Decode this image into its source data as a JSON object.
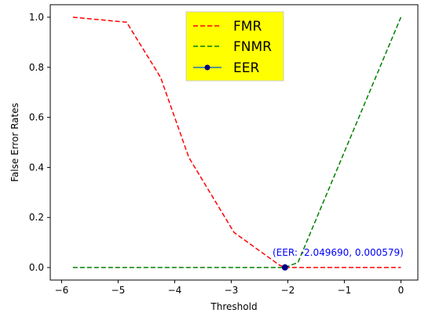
{
  "chart_data": {
    "type": "line",
    "xlabel": "Threshold",
    "ylabel": "False Error Rates",
    "xlim": [
      -6.2,
      0.3
    ],
    "ylim": [
      -0.05,
      1.05
    ],
    "x_ticks": [
      -6,
      -5,
      -4,
      -3,
      -2,
      -1,
      0
    ],
    "x_tick_labels": [
      "−6",
      "−5",
      "−4",
      "−3",
      "−2",
      "−1",
      "0"
    ],
    "y_ticks": [
      0.0,
      0.2,
      0.4,
      0.6,
      0.8,
      1.0
    ],
    "y_tick_labels": [
      "0.0",
      "0.2",
      "0.4",
      "0.6",
      "0.8",
      "1.0"
    ],
    "grid": false,
    "legend_position": "upper-center",
    "legend_background": "#ffff00",
    "series": [
      {
        "name": "FMR",
        "color": "#ff0000",
        "linestyle": "dashed",
        "x": [
          -5.8,
          -4.85,
          -4.25,
          -3.75,
          -2.95,
          -2.15,
          -2.05,
          -1.85,
          0.0
        ],
        "y": [
          1.0,
          0.98,
          0.76,
          0.44,
          0.14,
          0.01,
          0.0006,
          0.0,
          0.0
        ]
      },
      {
        "name": "FNMR",
        "color": "#008000",
        "linestyle": "dashed",
        "x": [
          -5.8,
          -2.2,
          -2.05,
          -1.82,
          0.0
        ],
        "y": [
          0.0,
          0.0,
          0.0006,
          0.02,
          1.0
        ]
      }
    ],
    "eer": {
      "name": "EER",
      "x": -2.04969,
      "y": 0.000579,
      "label": "(EER: -2.049690, 0.000579)",
      "marker_color": "#000080",
      "line_color": "#1f77b4",
      "label_color": "#0000ff"
    }
  }
}
